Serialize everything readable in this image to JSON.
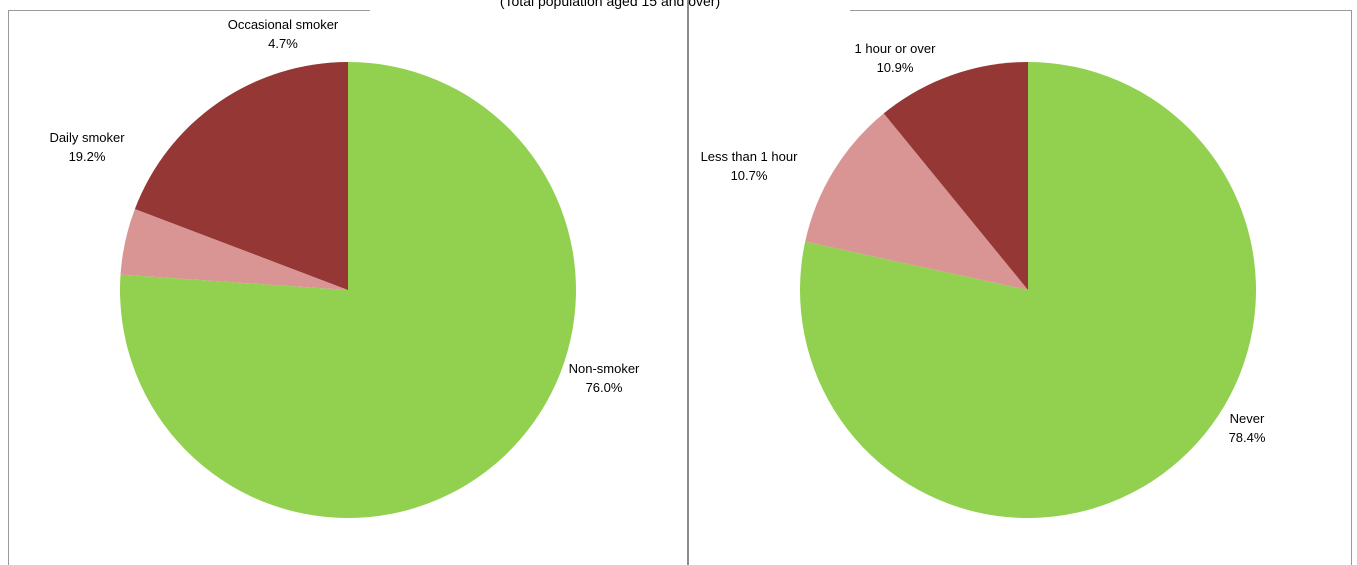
{
  "header_text": "(Total population aged 15 and over)",
  "chart_data": [
    {
      "type": "pie",
      "slices": [
        {
          "label": "Non-smoker",
          "value_text": "76.0%",
          "value": 76.0,
          "color": "#92d050"
        },
        {
          "label": "Occasional smoker",
          "value_text": "4.7%",
          "value": 4.7,
          "color": "#d99594"
        },
        {
          "label": "Daily smoker",
          "value_text": "19.2%",
          "value": 19.2,
          "color": "#953735"
        }
      ]
    },
    {
      "type": "pie",
      "slices": [
        {
          "label": "Never",
          "value_text": "78.4%",
          "value": 78.4,
          "color": "#92d050"
        },
        {
          "label": "Less than 1 hour",
          "value_text": "10.7%",
          "value": 10.7,
          "color": "#d99594"
        },
        {
          "label": "1 hour or over",
          "value_text": "10.9%",
          "value": 10.9,
          "color": "#953735"
        }
      ]
    }
  ]
}
